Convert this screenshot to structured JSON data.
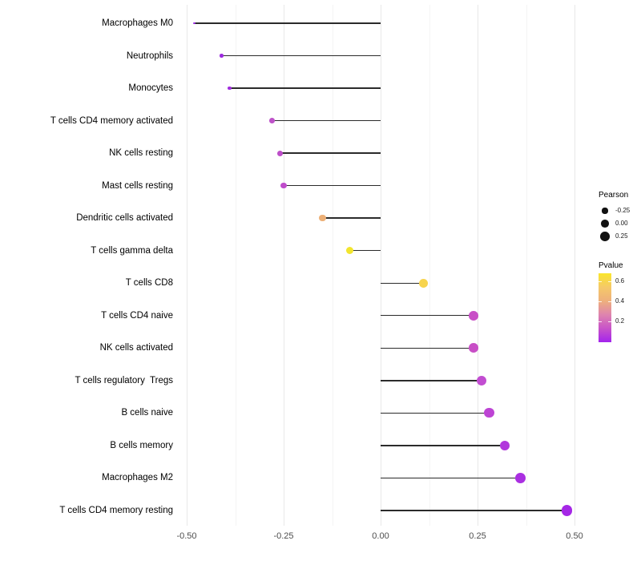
{
  "chart_data": {
    "type": "scatter",
    "variant": "lollipop",
    "grid": "vertical-major-and-minor",
    "legend_position": "right",
    "x_ticks": [
      {
        "label": "-0.50",
        "value": -0.5
      },
      {
        "label": "-0.25",
        "value": -0.25
      },
      {
        "label": "0.00",
        "value": 0
      },
      {
        "label": "0.25",
        "value": 0.25
      },
      {
        "label": "0.50",
        "value": 0.5
      }
    ],
    "x_minor_ticks": [
      -0.375,
      -0.125,
      0.125,
      0.375
    ],
    "xlim": [
      -0.523,
      0.531
    ],
    "points": [
      {
        "category": "Macrophages M0",
        "pearson": -0.48,
        "color": "#9B2BE0"
      },
      {
        "category": "Neutrophils",
        "pearson": -0.41,
        "color": "#9D2BDF"
      },
      {
        "category": "Monocytes",
        "pearson": -0.39,
        "color": "#A12DDE"
      },
      {
        "category": "T cells CD4 memory activated",
        "pearson": -0.28,
        "color": "#BE53C9"
      },
      {
        "category": "NK cells resting",
        "pearson": -0.26,
        "color": "#BD4EC9"
      },
      {
        "category": "Mast cells resting",
        "pearson": -0.25,
        "color": "#BF4CCB"
      },
      {
        "category": "Dendritic cells activated",
        "pearson": -0.15,
        "color": "#EDB077"
      },
      {
        "category": "T cells gamma delta",
        "pearson": -0.08,
        "color": "#F2E52E"
      },
      {
        "category": "T cells CD8",
        "pearson": 0.11,
        "color": "#F7D44E"
      },
      {
        "category": "T cells CD4 naive",
        "pearson": 0.24,
        "color": "#C84EC6"
      },
      {
        "category": "NK cells activated",
        "pearson": 0.24,
        "color": "#C84EC6"
      },
      {
        "category": "T cells regulatory  Tregs",
        "pearson": 0.26,
        "color": "#C24DD1"
      },
      {
        "category": "B cells naive",
        "pearson": 0.28,
        "color": "#BD44D4"
      },
      {
        "category": "B cells memory",
        "pearson": 0.32,
        "color": "#B138DC"
      },
      {
        "category": "Macrophages M2",
        "pearson": 0.36,
        "color": "#AA2FE1"
      },
      {
        "category": "T cells CD4 memory resting",
        "pearson": 0.48,
        "color": "#A527E6"
      }
    ],
    "size_legend": {
      "title": "Pearson",
      "items": [
        {
          "label": "-0.25",
          "value": -0.25
        },
        {
          "label": "0.00",
          "value": 0
        },
        {
          "label": "0.25",
          "value": 0.25
        }
      ]
    },
    "color_legend": {
      "title": "Pvalue",
      "ticks": [
        {
          "label": "0.6",
          "value": 0.6
        },
        {
          "label": "0.4",
          "value": 0.4
        },
        {
          "label": "0.2",
          "value": 0.2
        }
      ],
      "gradient_top_to_bottom": [
        "#FAE62B",
        "#F5C968",
        "#EEB07C",
        "#DE84AE",
        "#C853C9",
        "#A324EC"
      ],
      "domain": [
        0.0,
        0.68
      ]
    }
  },
  "colors": {
    "background": "#FFFFFF",
    "grid_major": "#E8E8E8",
    "grid_minor": "#F4F4F4",
    "stick": "#2B2B2B",
    "axis_text": "#4D4D4D",
    "category_text": "#000000",
    "legend_dot": "#111111"
  }
}
